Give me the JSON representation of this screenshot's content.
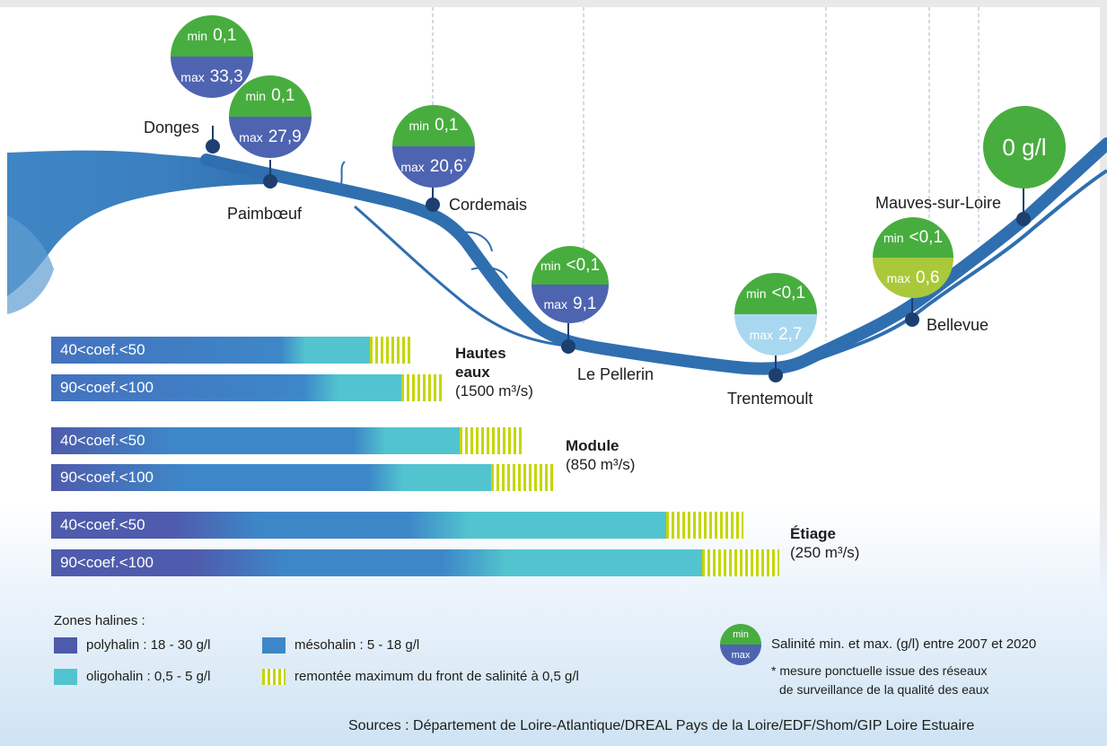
{
  "stations": {
    "donges": {
      "name": "Donges",
      "min_label": "min",
      "min": "0,1",
      "max_label": "max",
      "max": "33,3"
    },
    "paimboeuf": {
      "name": "Paimbœuf",
      "min_label": "min",
      "min": "0,1",
      "max_label": "max",
      "max": "27,9"
    },
    "cordemais": {
      "name": "Cordemais",
      "min_label": "min",
      "min": "0,1",
      "max_label": "max",
      "max": "20,6",
      "max_note": "*"
    },
    "le_pellerin": {
      "name": "Le Pellerin",
      "min_label": "min",
      "min": "<0,1",
      "max_label": "max",
      "max": "9,1"
    },
    "trentemoult": {
      "name": "Trentemoult",
      "min_label": "min",
      "min": "<0,1",
      "max_label": "max",
      "max": "2,7"
    },
    "bellevue": {
      "name": "Bellevue",
      "min_label": "min",
      "min": "<0,1",
      "max_label": "max",
      "max": "0,6"
    },
    "mauves": {
      "name": "Mauves-sur-Loire",
      "value": "0 g/l"
    }
  },
  "groups": {
    "hautes_eaux": {
      "title_line1": "Hautes",
      "title_line2": "eaux",
      "flow": "(1500 m³/s)"
    },
    "module": {
      "title": "Module",
      "flow": "(850 m³/s)"
    },
    "etiage": {
      "title": "Étiage",
      "flow": "(250 m³/s)"
    }
  },
  "bars": {
    "b1": {
      "label": "40<coef.<50"
    },
    "b2": {
      "label": "90<coef.<100"
    },
    "b3": {
      "label": "40<coef.<50"
    },
    "b4": {
      "label": "90<coef.<100"
    },
    "b5": {
      "label": "40<coef.<50"
    },
    "b6": {
      "label": "90<coef.<100"
    }
  },
  "legend": {
    "title": "Zones halines :",
    "polyhalin": "polyhalin : 18 - 30 g/l",
    "mesohalin": "mésohalin : 5 - 18 g/l",
    "oligohalin": "oligohalin : 0,5 - 5 g/l",
    "front": "remontée maximum du front de salinité à 0,5 g/l",
    "badge_min": "min",
    "badge_max": "max",
    "badge_desc": "Salinité min. et max. (g/l) entre 2007 et 2020",
    "note_line1": "* mesure ponctuelle issue des réseaux",
    "note_line2": "de surveillance de la qualité des eaux"
  },
  "sources": "Sources : Département de Loire-Atlantique/DREAL Pays de la Loire/EDF/Shom/GIP Loire Estuaire",
  "colors": {
    "polyhalin": "#4e5aab",
    "mesohalin": "#3d87c8",
    "oligohalin": "#52c4cf",
    "front": "#c4d600",
    "badge_min": "#48ad3f",
    "badge_max": "#4e64b1",
    "river": "#2f6fb0"
  }
}
